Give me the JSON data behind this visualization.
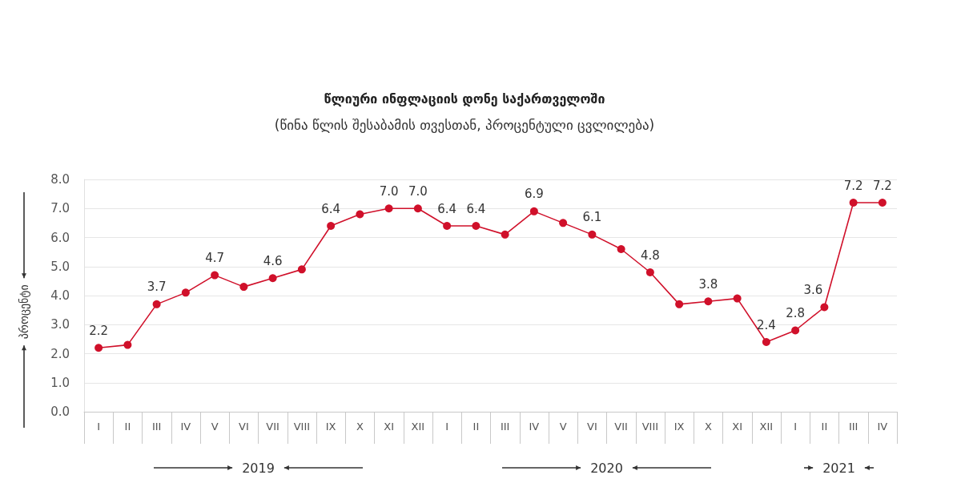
{
  "chart_data": {
    "type": "line",
    "title": "წლიური ინფლაციის დონე საქართველოში",
    "subtitle": "(წინა წლის შესაბამის თვესთან, პროცენტული ცვლილება)",
    "ylabel": "პროცენტი",
    "categories": [
      "I",
      "II",
      "III",
      "IV",
      "V",
      "VI",
      "VII",
      "VIII",
      "IX",
      "X",
      "XI",
      "XII",
      "I",
      "II",
      "III",
      "IV",
      "V",
      "VI",
      "VII",
      "VIII",
      "IX",
      "X",
      "XI",
      "XII",
      "I",
      "II",
      "III",
      "IV"
    ],
    "series": [
      {
        "color": "#d0102a",
        "values": [
          2.2,
          2.3,
          3.7,
          4.1,
          4.7,
          4.3,
          4.6,
          4.9,
          6.4,
          6.8,
          7.0,
          7.0,
          6.4,
          6.4,
          6.1,
          6.9,
          6.5,
          6.1,
          5.6,
          4.8,
          3.7,
          3.8,
          3.9,
          2.4,
          2.8,
          3.6,
          7.2,
          7.2
        ],
        "value_labels": [
          "2.2",
          null,
          "3.7",
          null,
          "4.7",
          null,
          "4.6",
          null,
          "6.4",
          null,
          "7.0",
          "7.0",
          "6.4",
          "6.4",
          null,
          "6.9",
          null,
          "6.1",
          null,
          "4.8",
          null,
          "3.8",
          null,
          "2.4",
          "2.8",
          "3.6",
          "7.2",
          "7.2"
        ]
      }
    ],
    "ylim": [
      0,
      8
    ],
    "yticks": [
      {
        "value": 0,
        "label": "0.0"
      },
      {
        "value": 1,
        "label": "1.0"
      },
      {
        "value": 2,
        "label": "2.0"
      },
      {
        "value": 3,
        "label": "3.0"
      },
      {
        "value": 4,
        "label": "4.0"
      },
      {
        "value": 5,
        "label": "5.0"
      },
      {
        "value": 6,
        "label": "6.0"
      },
      {
        "value": 7,
        "label": "7.0"
      },
      {
        "value": 8,
        "label": "8.0"
      }
    ],
    "grid": "y",
    "marker": "circle",
    "line_style": "solid",
    "annotations": [
      "2019",
      "2020",
      "2021"
    ]
  }
}
